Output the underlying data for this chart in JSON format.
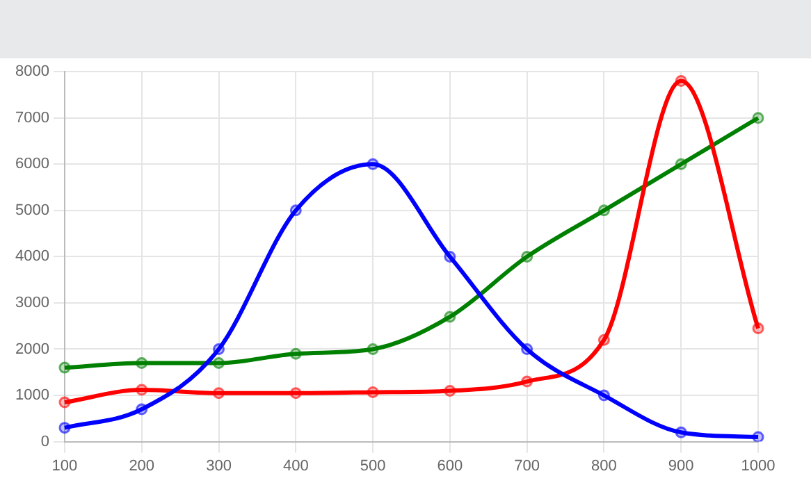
{
  "chart_data": {
    "type": "line",
    "categories": [
      "100",
      "200",
      "300",
      "400",
      "500",
      "600",
      "700",
      "800",
      "900",
      "1000"
    ],
    "series": [
      {
        "color": "#0000ff",
        "values": [
          300,
          700,
          2000,
          5000,
          6000,
          4000,
          2000,
          1000,
          200,
          100
        ]
      },
      {
        "color": "#ff0000",
        "values": [
          850,
          1120,
          1050,
          1050,
          1070,
          1100,
          1300,
          2200,
          7800,
          2450
        ]
      },
      {
        "color": "#008000",
        "values": [
          1600,
          1700,
          1700,
          1900,
          2000,
          2700,
          4000,
          5000,
          6000,
          7000
        ]
      }
    ],
    "ylim": [
      0,
      8000
    ],
    "yticks": [
      0,
      1000,
      2000,
      3000,
      4000,
      5000,
      6000,
      7000,
      8000
    ],
    "grid": true,
    "legend": false,
    "marker": "circle",
    "line_style": "solid"
  }
}
